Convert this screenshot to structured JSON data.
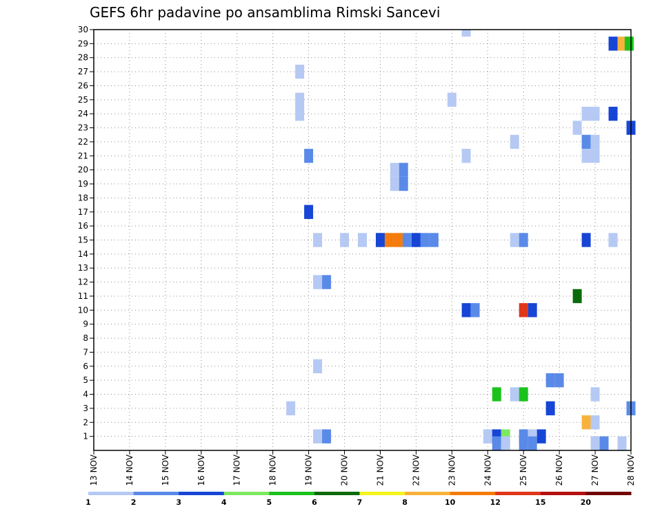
{
  "chart_data": {
    "type": "heatmap",
    "title": "GEFS 6hr padavine po ansamblima Rimski Sancevi",
    "xlabel": "",
    "ylabel": "",
    "x_ticks": [
      "13 NOV",
      "14 NOV",
      "15 NOV",
      "16 NOV",
      "17 NOV",
      "18 NOV",
      "19 NOV",
      "20 NOV",
      "21 NOV",
      "22 NOV",
      "23 NOV",
      "24 NOV",
      "25 NOV",
      "26 NOV",
      "27 NOV",
      "28 NOV"
    ],
    "x_range_days": [
      0,
      15
    ],
    "y_ticks": [
      1,
      2,
      3,
      4,
      5,
      6,
      7,
      8,
      9,
      10,
      11,
      12,
      13,
      14,
      15,
      16,
      17,
      18,
      19,
      20,
      21,
      22,
      23,
      24,
      25,
      26,
      27,
      28,
      29,
      30
    ],
    "y_range": [
      0,
      30
    ],
    "grid": true,
    "legend": {
      "placement": "bottom",
      "levels": [
        1,
        2,
        3,
        4,
        5,
        6,
        7,
        8,
        10,
        12,
        15,
        20
      ],
      "labels": [
        "1",
        "2",
        "3",
        "4",
        "5",
        "6",
        "7",
        "8",
        "10",
        "12",
        "15",
        "20"
      ],
      "colors": [
        "#b5c9f4",
        "#5a8ae8",
        "#1745d6",
        "#7ee860",
        "#1cc21c",
        "#0b6b0b",
        "#f4f41c",
        "#f8b23c",
        "#f47c0c",
        "#e0361a",
        "#b50f0f",
        "#720606"
      ]
    },
    "cells": [
      {
        "t": 10.4,
        "m": 30,
        "c": 0
      },
      {
        "t": 14.5,
        "m": 29,
        "c": 2
      },
      {
        "t": 14.75,
        "m": 29,
        "c": 7
      },
      {
        "t": 14.95,
        "m": 29,
        "c": 4
      },
      {
        "t": 5.75,
        "m": 27,
        "c": 0
      },
      {
        "t": 5.75,
        "m": 25,
        "c": 0
      },
      {
        "t": 10.0,
        "m": 25,
        "c": 0
      },
      {
        "t": 5.75,
        "m": 24,
        "c": 0
      },
      {
        "t": 13.75,
        "m": 24,
        "c": 0
      },
      {
        "t": 14.0,
        "m": 24,
        "c": 0
      },
      {
        "t": 14.5,
        "m": 24,
        "c": 2
      },
      {
        "t": 13.5,
        "m": 23,
        "c": 0
      },
      {
        "t": 15.0,
        "m": 23,
        "c": 2
      },
      {
        "t": 11.75,
        "m": 22,
        "c": 0
      },
      {
        "t": 13.75,
        "m": 22,
        "c": 1
      },
      {
        "t": 14.0,
        "m": 22,
        "c": 0
      },
      {
        "t": 6.0,
        "m": 21,
        "c": 1
      },
      {
        "t": 10.4,
        "m": 21,
        "c": 0
      },
      {
        "t": 13.75,
        "m": 21,
        "c": 0
      },
      {
        "t": 14.0,
        "m": 21,
        "c": 0
      },
      {
        "t": 8.4,
        "m": 20,
        "c": 0
      },
      {
        "t": 8.65,
        "m": 20,
        "c": 1
      },
      {
        "t": 8.4,
        "m": 19,
        "c": 0
      },
      {
        "t": 8.65,
        "m": 19,
        "c": 1
      },
      {
        "t": 6.0,
        "m": 17,
        "c": 2
      },
      {
        "t": 6.25,
        "m": 15,
        "c": 0
      },
      {
        "t": 7.0,
        "m": 15,
        "c": 0
      },
      {
        "t": 7.5,
        "m": 15,
        "c": 0
      },
      {
        "t": 8.0,
        "m": 15,
        "c": 2
      },
      {
        "t": 8.25,
        "m": 15,
        "c": 8
      },
      {
        "t": 8.5,
        "m": 15,
        "c": 8
      },
      {
        "t": 8.75,
        "m": 15,
        "c": 1
      },
      {
        "t": 9.0,
        "m": 15,
        "c": 2
      },
      {
        "t": 9.25,
        "m": 15,
        "c": 1
      },
      {
        "t": 9.5,
        "m": 15,
        "c": 1
      },
      {
        "t": 11.75,
        "m": 15,
        "c": 0
      },
      {
        "t": 12.0,
        "m": 15,
        "c": 1
      },
      {
        "t": 13.75,
        "m": 15,
        "c": 2
      },
      {
        "t": 14.5,
        "m": 15,
        "c": 0
      },
      {
        "t": 6.25,
        "m": 12,
        "c": 0
      },
      {
        "t": 6.5,
        "m": 12,
        "c": 1
      },
      {
        "t": 13.5,
        "m": 11,
        "c": 5
      },
      {
        "t": 10.4,
        "m": 10,
        "c": 2
      },
      {
        "t": 10.65,
        "m": 10,
        "c": 1
      },
      {
        "t": 12.0,
        "m": 10,
        "c": 9
      },
      {
        "t": 12.25,
        "m": 10,
        "c": 2
      },
      {
        "t": 6.25,
        "m": 6,
        "c": 0
      },
      {
        "t": 12.75,
        "m": 5,
        "c": 1
      },
      {
        "t": 13.0,
        "m": 5,
        "c": 1
      },
      {
        "t": 11.25,
        "m": 4,
        "c": 4
      },
      {
        "t": 11.75,
        "m": 4,
        "c": 0
      },
      {
        "t": 12.0,
        "m": 4,
        "c": 4
      },
      {
        "t": 14.0,
        "m": 4,
        "c": 0
      },
      {
        "t": 5.5,
        "m": 3,
        "c": 0
      },
      {
        "t": 12.75,
        "m": 3,
        "c": 2
      },
      {
        "t": 15.0,
        "m": 3,
        "c": 1
      },
      {
        "t": 13.75,
        "m": 2,
        "c": 7
      },
      {
        "t": 14.0,
        "m": 2,
        "c": 0
      },
      {
        "t": 6.25,
        "m": 1,
        "c": 0
      },
      {
        "t": 6.5,
        "m": 1,
        "c": 1
      },
      {
        "t": 11.0,
        "m": 1,
        "c": 0
      },
      {
        "t": 11.25,
        "m": 1,
        "c": 2
      },
      {
        "t": 11.5,
        "m": 1,
        "c": 3
      },
      {
        "t": 12.0,
        "m": 1,
        "c": 1
      },
      {
        "t": 12.25,
        "m": 1,
        "c": 0
      },
      {
        "t": 12.5,
        "m": 1,
        "c": 2
      },
      {
        "t": 11.25,
        "m": 0.5,
        "c": 1
      },
      {
        "t": 11.5,
        "m": 0.5,
        "c": 0
      },
      {
        "t": 12.0,
        "m": 0.5,
        "c": 1
      },
      {
        "t": 12.25,
        "m": 0.5,
        "c": 1
      },
      {
        "t": 14.0,
        "m": 0.5,
        "c": 0
      },
      {
        "t": 14.25,
        "m": 0.5,
        "c": 1
      },
      {
        "t": 14.75,
        "m": 0.5,
        "c": 0
      }
    ]
  }
}
